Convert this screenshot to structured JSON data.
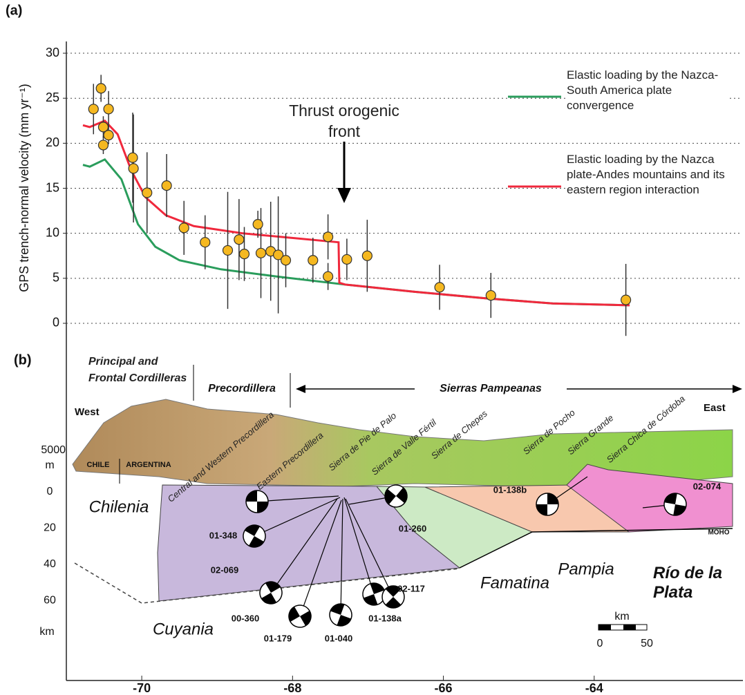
{
  "chart_data": {
    "type": "scatter",
    "panel_label": "(a)",
    "y_label": "GPS trench-normal velocity (mm yr⁻¹)",
    "annotation": "Thrust orogenic front",
    "x": [
      -70.64,
      -70.54,
      -70.51,
      -70.51,
      -70.44,
      -70.44,
      -70.12,
      -70.11,
      -69.93,
      -69.67,
      -69.44,
      -69.16,
      -68.86,
      -68.71,
      -68.64,
      -68.46,
      -68.42,
      -68.29,
      -68.19,
      -68.09,
      -67.73,
      -67.53,
      -67.53,
      -67.28,
      -67.01,
      -66.05,
      -65.37,
      -63.58
    ],
    "values": [
      23.8,
      26.1,
      21.8,
      19.8,
      23.8,
      20.9,
      18.4,
      17.2,
      14.5,
      15.3,
      10.6,
      9.0,
      8.1,
      9.3,
      7.7,
      11.0,
      7.8,
      8.0,
      7.6,
      7.0,
      7.0,
      9.6,
      5.2,
      7.1,
      7.5,
      4.0,
      3.1,
      2.6
    ],
    "errors": [
      2.8,
      1.5,
      1.2,
      1.0,
      2.0,
      1.0,
      5.0,
      6.0,
      4.5,
      3.5,
      3.0,
      3.0,
      6.5,
      4.5,
      3.0,
      1.5,
      5.0,
      5.5,
      6.5,
      3.0,
      2.5,
      2.5,
      1.5,
      2.3,
      4.0,
      2.5,
      2.5,
      4.0
    ],
    "color": "#f5b820",
    "series": [
      {
        "name": "Elastic loading by the Nazca-South America plate convergence",
        "color": "#2a9d5c",
        "x": [
          -70.78,
          -70.69,
          -70.49,
          -70.27,
          -70.05,
          -69.82,
          -69.5,
          -68.95,
          -68.21,
          -67.3,
          -66.38,
          -65.47,
          -64.55,
          -63.53
        ],
        "values": [
          17.6,
          17.4,
          18.2,
          16,
          11,
          8.5,
          7,
          6,
          5.2,
          4.3,
          3.5,
          2.8,
          2.2,
          2.0
        ]
      },
      {
        "name": "Elastic loading by the Nazca plate-Andes mountains and its eastern region interaction",
        "color": "#f0283c",
        "x": [
          -70.78,
          -70.69,
          -70.49,
          -70.32,
          -70.14,
          -69.95,
          -69.68,
          -69.31,
          -68.67,
          -68.03,
          -67.39,
          -67.38,
          -67.3,
          -66.38,
          -65.47,
          -64.55,
          -63.53
        ],
        "values": [
          22,
          21.8,
          22.5,
          21,
          17,
          14,
          12,
          10.8,
          10,
          9.5,
          9.0,
          4.5,
          4.3,
          3.5,
          2.8,
          2.2,
          2.0
        ]
      }
    ],
    "xlim": [
      -71,
      -62
    ],
    "ylim": [
      -1,
      31
    ],
    "xticks": [
      -70,
      -68,
      -66,
      -64
    ],
    "yticks": [
      0,
      5,
      10,
      15,
      20,
      25,
      30
    ],
    "grid": true
  },
  "cross_section": {
    "panel_label": "(b)",
    "regions": [
      "Principal and Frontal Cordilleras",
      "Precordillera",
      "Sierras Pampeanas"
    ],
    "west": "West",
    "east": "East",
    "elevation_tick": 5000,
    "elevation_unit": "m",
    "depth_ticks": [
      0,
      20,
      40,
      60
    ],
    "depth_unit": "km",
    "countries": [
      "CHILE",
      "ARGENTINA"
    ],
    "ranges": [
      "Central and Western Precordillera",
      "Eastern Precordillera",
      "Sierra de Pie de Palo",
      "Sierra de Valle Fértil",
      "Sierra de Chepes",
      "Sierra de Pocho",
      "Sierra Grande",
      "Sierra Chica de Córdoba"
    ],
    "terranes": [
      "Chilenia",
      "Cuyania",
      "Famatina",
      "Pampia",
      "Río de la Plata"
    ],
    "moho": "MOHO",
    "events": [
      "01-348",
      "02-069",
      "00-360",
      "01-179",
      "01-040",
      "01-138a",
      "02-117",
      "01-260",
      "01-138b",
      "02-074"
    ],
    "scale_bar": {
      "unit": "km",
      "ticks": [
        0,
        50
      ]
    }
  }
}
